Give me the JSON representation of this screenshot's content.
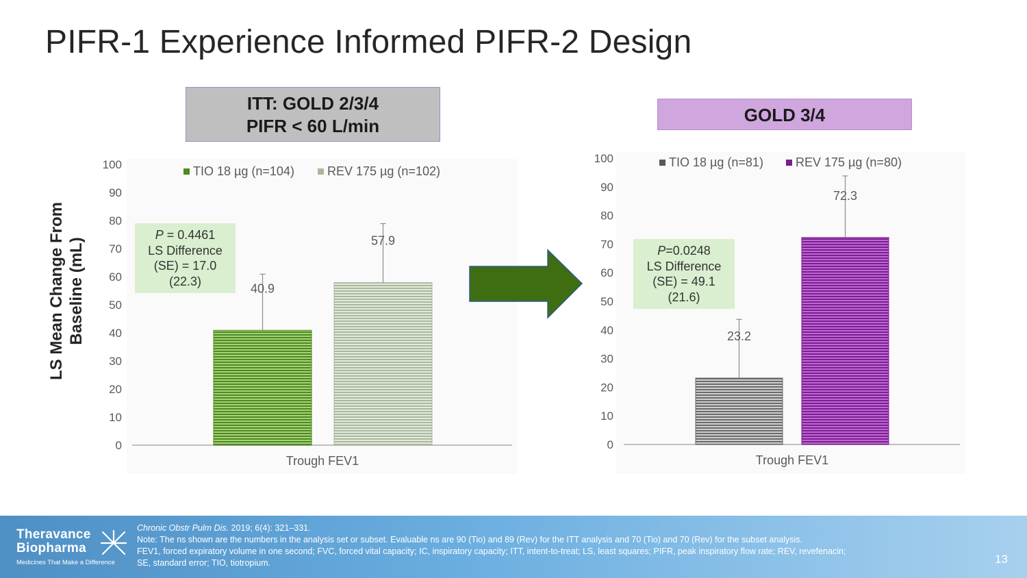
{
  "title": "PIFR-1 Experience Informed PIFR-2 Design",
  "y_axis_label": [
    "LS Mean Change From",
    "Baseline (mL)"
  ],
  "left_panel": {
    "header_lines": [
      "ITT: GOLD 2/3/4",
      "PIFR < 60 L/min"
    ],
    "stat_lines": [
      "P = 0.4461",
      "LS Difference",
      "(SE) = 17.0",
      "(22.3)"
    ],
    "stat_italic_prefix": "P",
    "stat_first_rest": " = 0.4461"
  },
  "right_panel": {
    "header": "GOLD 3/4",
    "stat_italic_prefix": "P",
    "stat_first_rest": "=0.0248",
    "stat_lines": [
      "P=0.0248",
      "LS Difference",
      "(SE) = 49.1",
      "(21.6)"
    ]
  },
  "arrow_color": "#3f6e12",
  "chart_data": [
    {
      "type": "bar",
      "title": "ITT: GOLD 2/3/4 PIFR < 60 L/min",
      "categories": [
        "Trough FEV1"
      ],
      "xlabel": "",
      "ylabel": "LS Mean Change From Baseline (mL)",
      "ylim": [
        0,
        100
      ],
      "yticks": [
        0,
        10,
        20,
        30,
        40,
        50,
        60,
        70,
        80,
        90,
        100
      ],
      "series": [
        {
          "name": "TIO 18 µg (n=104)",
          "values": [
            40.9
          ],
          "error_plus": [
            20.0
          ],
          "color": "#6aa13c",
          "label": "40.9"
        },
        {
          "name": "REV 175 µg (n=102)",
          "values": [
            57.9
          ],
          "error_plus": [
            21.0
          ],
          "color": "#bcc9b0",
          "label": "57.9"
        }
      ],
      "legend": "top"
    },
    {
      "type": "bar",
      "title": "GOLD 3/4",
      "categories": [
        "Trough FEV1"
      ],
      "xlabel": "",
      "ylabel": "LS Mean Change From Baseline (mL)",
      "ylim": [
        0,
        100
      ],
      "yticks": [
        0,
        10,
        20,
        30,
        40,
        50,
        60,
        70,
        80,
        90,
        100
      ],
      "series": [
        {
          "name": "TIO 18 µg (n=81)",
          "values": [
            23.2
          ],
          "error_plus": [
            20.5
          ],
          "color": "#8c8c8c",
          "label": "23.2"
        },
        {
          "name": "REV 175 µg (n=80)",
          "values": [
            72.3
          ],
          "error_plus": [
            21.5
          ],
          "color": "#8e2aa0",
          "label": "72.3"
        }
      ],
      "legend": "top"
    }
  ],
  "footer": {
    "logo_line1": "Theravance",
    "logo_line2": "Biopharma",
    "logo_tagline": "Medicines That Make a Difference",
    "citation_journal": "Chronic Obstr Pulm Dis.",
    "citation_rest": " 2019; 6(4): 321–331.",
    "note_lines": [
      "Note: The ns shown are the numbers in the analysis set or subset. Evaluable ns are 90 (Tio) and 89 (Rev) for the ITT analysis and 70 (Tio) and 70 (Rev) for the subset analysis.",
      "FEV1, forced expiratory volume in one second; FVC, forced vital capacity; IC, inspiratory capacity; ITT, intent-to-treat; LS, least squares; PIFR, peak inspiratory flow rate; REV, revefenacin;",
      "SE, standard error; TIO, tiotropium."
    ],
    "page_number": "13"
  }
}
